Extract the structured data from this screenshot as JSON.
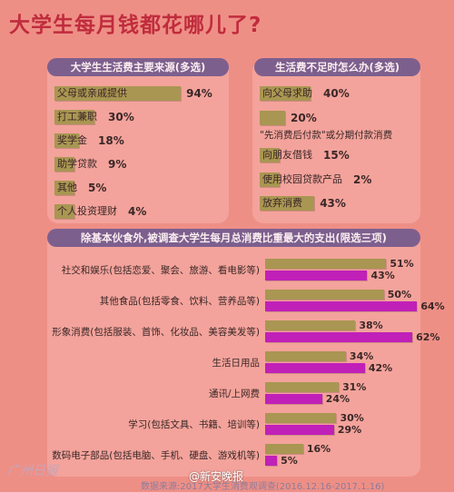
{
  "page": {
    "title": "大学生每月钱都花哪儿了?",
    "footer": "数据来源:2017大学生消费观调查(2016.12.16-2017.1.16)",
    "weibo": "@新安晚报",
    "stamp": "广州日报"
  },
  "colors": {
    "background": "#ee8f86",
    "bar_olive": "#a99652",
    "bar_magenta": "#c020b8",
    "band": "#7d5f8e"
  },
  "chart_data": [
    {
      "type": "bar",
      "title": "大学生生活费主要来源(多选)",
      "categories": [
        "父母或亲戚提供",
        "打工兼职",
        "奖学金",
        "助学贷款",
        "其他",
        "个人投资理财"
      ],
      "values": [
        94,
        30,
        18,
        9,
        5,
        4
      ],
      "xlim": [
        0,
        100
      ]
    },
    {
      "type": "bar",
      "title": "生活费不足时怎么办(多选)",
      "categories": [
        "向父母求助",
        "\"先消费后付款\"或分期付款消费",
        "向朋友借钱",
        "使用校园贷款产品",
        "放弃消费"
      ],
      "values": [
        40,
        20,
        15,
        2,
        43
      ],
      "xlim": [
        0,
        100
      ]
    },
    {
      "type": "bar",
      "title": "除基本伙食外,被调查大学生每月总消费比重最大的支出(限选三项)",
      "categories": [
        "社交和娱乐(包括恋爱、聚会、旅游、看电影等)",
        "其他食品(包括零食、饮料、营养品等)",
        "形象消费(包括服装、首饰、化妆品、美容美发等)",
        "生活日用品",
        "通讯/上网费",
        "学习(包括文具、书籍、培训等)",
        "数码电子部品(包括电脑、手机、硬盘、游戏机等)"
      ],
      "series": [
        {
          "values": [
            51,
            50,
            38,
            34,
            31,
            30,
            16
          ]
        },
        {
          "values": [
            43,
            64,
            62,
            42,
            24,
            29,
            5
          ]
        }
      ],
      "xlim": [
        0,
        65
      ]
    }
  ]
}
